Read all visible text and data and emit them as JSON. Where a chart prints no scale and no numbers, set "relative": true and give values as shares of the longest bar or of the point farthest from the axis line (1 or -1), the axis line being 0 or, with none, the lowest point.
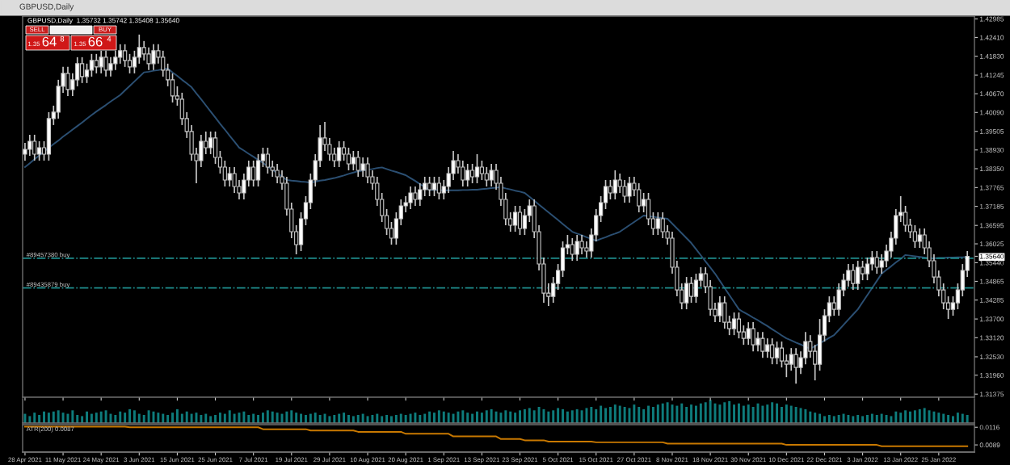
{
  "chart_data": [
    {
      "type": "candlestick",
      "title": "GBPUSD,Daily",
      "subtitle": "GBPUSD,Daily  1.35732 1.35742 1.35408 1.35640",
      "categories": [
        "28 Apr 2021",
        null,
        null,
        null,
        null,
        null,
        null,
        null,
        "11 May 2021",
        null,
        null,
        null,
        null,
        null,
        null,
        null,
        "24 May 2021",
        null,
        null,
        null,
        null,
        null,
        null,
        null,
        "3 Jun 2021",
        null,
        null,
        null,
        null,
        null,
        null,
        null,
        "15 Jun 2021",
        null,
        null,
        null,
        null,
        null,
        null,
        null,
        "25 Jun 2021",
        null,
        null,
        null,
        null,
        null,
        null,
        null,
        "7 Jul 2021",
        null,
        null,
        null,
        null,
        null,
        null,
        null,
        "19 Jul 2021",
        null,
        null,
        null,
        null,
        null,
        null,
        null,
        "29 Jul 2021",
        null,
        null,
        null,
        null,
        null,
        null,
        null,
        "10 Aug 2021",
        null,
        null,
        null,
        null,
        null,
        null,
        null,
        "20 Aug 2021",
        null,
        null,
        null,
        null,
        null,
        null,
        null,
        "1 Sep 2021",
        null,
        null,
        null,
        null,
        null,
        null,
        null,
        "13 Sep 2021",
        null,
        null,
        null,
        null,
        null,
        null,
        null,
        "23 Sep 2021",
        null,
        null,
        null,
        null,
        null,
        null,
        null,
        "5 Oct 2021",
        null,
        null,
        null,
        null,
        null,
        null,
        null,
        "15 Oct 2021",
        null,
        null,
        null,
        null,
        null,
        null,
        null,
        "27 Oct 2021",
        null,
        null,
        null,
        null,
        null,
        null,
        null,
        "8 Nov 2021",
        null,
        null,
        null,
        null,
        null,
        null,
        null,
        "18 Nov 2021",
        null,
        null,
        null,
        null,
        null,
        null,
        null,
        "30 Nov 2021",
        null,
        null,
        null,
        null,
        null,
        null,
        null,
        "10 Dec 2021",
        null,
        null,
        null,
        null,
        null,
        null,
        null,
        "22 Dec 2021",
        null,
        null,
        null,
        null,
        null,
        null,
        null,
        "3 Jan 2022",
        null,
        null,
        null,
        null,
        null,
        null,
        null,
        "13 Jan 2022",
        null,
        null,
        null,
        null,
        null,
        null,
        null,
        "25 Jan 2022",
        null,
        null,
        null,
        null,
        null,
        null
      ],
      "ohlc": [
        [
          1.388,
          1.3915,
          1.386,
          1.3895
        ],
        [
          1.3895,
          1.394,
          1.3875,
          1.392
        ],
        [
          1.392,
          1.394,
          1.386,
          1.388
        ],
        [
          1.388,
          1.392,
          1.386,
          1.39
        ],
        [
          1.39,
          1.392,
          1.386,
          1.388
        ],
        [
          1.388,
          1.401,
          1.386,
          1.399
        ],
        [
          1.399,
          1.403,
          1.397,
          1.401
        ],
        [
          1.401,
          1.411,
          1.399,
          1.409
        ],
        [
          1.409,
          1.415,
          1.407,
          1.413
        ],
        [
          1.413,
          1.415,
          1.406,
          1.408
        ],
        [
          1.408,
          1.413,
          1.406,
          1.411
        ],
        [
          1.411,
          1.418,
          1.409,
          1.416
        ],
        [
          1.416,
          1.418,
          1.41,
          1.412
        ],
        [
          1.412,
          1.416,
          1.41,
          1.414
        ],
        [
          1.414,
          1.419,
          1.412,
          1.417
        ],
        [
          1.417,
          1.419,
          1.413,
          1.415
        ],
        [
          1.415,
          1.42,
          1.413,
          1.418
        ],
        [
          1.418,
          1.42,
          1.412,
          1.414
        ],
        [
          1.414,
          1.418,
          1.412,
          1.416
        ],
        [
          1.416,
          1.42,
          1.414,
          1.418
        ],
        [
          1.418,
          1.422,
          1.416,
          1.42
        ],
        [
          1.42,
          1.422,
          1.415,
          1.417
        ],
        [
          1.417,
          1.419,
          1.413,
          1.415
        ],
        [
          1.415,
          1.42,
          1.413,
          1.418
        ],
        [
          1.418,
          1.425,
          1.416,
          1.421
        ],
        [
          1.421,
          1.423,
          1.417,
          1.419
        ],
        [
          1.419,
          1.421,
          1.414,
          1.416
        ],
        [
          1.416,
          1.422,
          1.414,
          1.42
        ],
        [
          1.42,
          1.422,
          1.416,
          1.418
        ],
        [
          1.418,
          1.42,
          1.412,
          1.414
        ],
        [
          1.414,
          1.416,
          1.409,
          1.411
        ],
        [
          1.411,
          1.413,
          1.404,
          1.406
        ],
        [
          1.406,
          1.409,
          1.403,
          1.405
        ],
        [
          1.405,
          1.407,
          1.397,
          1.399
        ],
        [
          1.399,
          1.401,
          1.393,
          1.395
        ],
        [
          1.395,
          1.397,
          1.386,
          1.388
        ],
        [
          1.388,
          1.39,
          1.379,
          1.386
        ],
        [
          1.386,
          1.394,
          1.384,
          1.392
        ],
        [
          1.392,
          1.395,
          1.388,
          1.39
        ],
        [
          1.39,
          1.395,
          1.388,
          1.393
        ],
        [
          1.393,
          1.395,
          1.385,
          1.387
        ],
        [
          1.387,
          1.389,
          1.382,
          1.384
        ],
        [
          1.384,
          1.386,
          1.378,
          1.38
        ],
        [
          1.38,
          1.384,
          1.378,
          1.382
        ],
        [
          1.382,
          1.384,
          1.376,
          1.378
        ],
        [
          1.378,
          1.38,
          1.374,
          1.376
        ],
        [
          1.376,
          1.382,
          1.374,
          1.38
        ],
        [
          1.38,
          1.386,
          1.378,
          1.384
        ],
        [
          1.384,
          1.386,
          1.378,
          1.38
        ],
        [
          1.38,
          1.388,
          1.378,
          1.386
        ],
        [
          1.386,
          1.39,
          1.384,
          1.388
        ],
        [
          1.388,
          1.39,
          1.382,
          1.384
        ],
        [
          1.384,
          1.386,
          1.381,
          1.383
        ],
        [
          1.383,
          1.385,
          1.379,
          1.381
        ],
        [
          1.381,
          1.383,
          1.377,
          1.379
        ],
        [
          1.379,
          1.381,
          1.369,
          1.371
        ],
        [
          1.371,
          1.373,
          1.362,
          1.364
        ],
        [
          1.364,
          1.366,
          1.357,
          1.36
        ],
        [
          1.36,
          1.37,
          1.358,
          1.368
        ],
        [
          1.368,
          1.375,
          1.366,
          1.373
        ],
        [
          1.373,
          1.382,
          1.371,
          1.38
        ],
        [
          1.38,
          1.388,
          1.378,
          1.386
        ],
        [
          1.386,
          1.397,
          1.384,
          1.393
        ],
        [
          1.393,
          1.398,
          1.389,
          1.391
        ],
        [
          1.391,
          1.393,
          1.386,
          1.388
        ],
        [
          1.388,
          1.39,
          1.384,
          1.386
        ],
        [
          1.386,
          1.392,
          1.384,
          1.39
        ],
        [
          1.39,
          1.392,
          1.386,
          1.388
        ],
        [
          1.388,
          1.39,
          1.383,
          1.385
        ],
        [
          1.385,
          1.389,
          1.383,
          1.387
        ],
        [
          1.387,
          1.389,
          1.381,
          1.383
        ],
        [
          1.383,
          1.387,
          1.381,
          1.385
        ],
        [
          1.385,
          1.387,
          1.379,
          1.381
        ],
        [
          1.381,
          1.383,
          1.377,
          1.379
        ],
        [
          1.379,
          1.381,
          1.372,
          1.374
        ],
        [
          1.374,
          1.376,
          1.367,
          1.369
        ],
        [
          1.369,
          1.371,
          1.363,
          1.365
        ],
        [
          1.365,
          1.367,
          1.36,
          1.362
        ],
        [
          1.362,
          1.37,
          1.36,
          1.368
        ],
        [
          1.368,
          1.374,
          1.366,
          1.372
        ],
        [
          1.372,
          1.375,
          1.37,
          1.373
        ],
        [
          1.373,
          1.378,
          1.371,
          1.376
        ],
        [
          1.376,
          1.378,
          1.372,
          1.374
        ],
        [
          1.374,
          1.379,
          1.372,
          1.377
        ],
        [
          1.377,
          1.381,
          1.375,
          1.379
        ],
        [
          1.379,
          1.381,
          1.375,
          1.377
        ],
        [
          1.377,
          1.381,
          1.375,
          1.379
        ],
        [
          1.379,
          1.381,
          1.374,
          1.376
        ],
        [
          1.376,
          1.38,
          1.374,
          1.378
        ],
        [
          1.378,
          1.384,
          1.376,
          1.382
        ],
        [
          1.382,
          1.389,
          1.38,
          1.386
        ],
        [
          1.386,
          1.388,
          1.382,
          1.384
        ],
        [
          1.384,
          1.386,
          1.378,
          1.38
        ],
        [
          1.38,
          1.385,
          1.378,
          1.383
        ],
        [
          1.383,
          1.385,
          1.379,
          1.381
        ],
        [
          1.381,
          1.388,
          1.379,
          1.384
        ],
        [
          1.384,
          1.386,
          1.38,
          1.382
        ],
        [
          1.382,
          1.384,
          1.378,
          1.38
        ],
        [
          1.38,
          1.385,
          1.378,
          1.383
        ],
        [
          1.383,
          1.385,
          1.377,
          1.379
        ],
        [
          1.379,
          1.381,
          1.372,
          1.374
        ],
        [
          1.374,
          1.376,
          1.366,
          1.368
        ],
        [
          1.368,
          1.37,
          1.364,
          1.366
        ],
        [
          1.366,
          1.372,
          1.364,
          1.37
        ],
        [
          1.37,
          1.372,
          1.363,
          1.365
        ],
        [
          1.365,
          1.371,
          1.363,
          1.369
        ],
        [
          1.369,
          1.374,
          1.367,
          1.372
        ],
        [
          1.372,
          1.374,
          1.362,
          1.364
        ],
        [
          1.364,
          1.366,
          1.352,
          1.354
        ],
        [
          1.354,
          1.356,
          1.342,
          1.345
        ],
        [
          1.345,
          1.348,
          1.341,
          1.344
        ],
        [
          1.344,
          1.35,
          1.342,
          1.348
        ],
        [
          1.348,
          1.354,
          1.346,
          1.352
        ],
        [
          1.352,
          1.361,
          1.35,
          1.359
        ],
        [
          1.359,
          1.363,
          1.357,
          1.36
        ],
        [
          1.36,
          1.362,
          1.355,
          1.357
        ],
        [
          1.357,
          1.363,
          1.355,
          1.361
        ],
        [
          1.361,
          1.363,
          1.357,
          1.359
        ],
        [
          1.359,
          1.361,
          1.356,
          1.358
        ],
        [
          1.358,
          1.365,
          1.356,
          1.363
        ],
        [
          1.363,
          1.371,
          1.361,
          1.369
        ],
        [
          1.369,
          1.375,
          1.367,
          1.373
        ],
        [
          1.373,
          1.38,
          1.371,
          1.378
        ],
        [
          1.378,
          1.38,
          1.374,
          1.376
        ],
        [
          1.376,
          1.383,
          1.374,
          1.38
        ],
        [
          1.38,
          1.382,
          1.376,
          1.378
        ],
        [
          1.378,
          1.38,
          1.373,
          1.375
        ],
        [
          1.375,
          1.381,
          1.373,
          1.379
        ],
        [
          1.379,
          1.381,
          1.375,
          1.377
        ],
        [
          1.377,
          1.379,
          1.37,
          1.372
        ],
        [
          1.372,
          1.376,
          1.37,
          1.374
        ],
        [
          1.374,
          1.376,
          1.366,
          1.368
        ],
        [
          1.368,
          1.37,
          1.363,
          1.365
        ],
        [
          1.365,
          1.37,
          1.363,
          1.368
        ],
        [
          1.368,
          1.37,
          1.362,
          1.364
        ],
        [
          1.364,
          1.366,
          1.36,
          1.362
        ],
        [
          1.362,
          1.364,
          1.351,
          1.353
        ],
        [
          1.353,
          1.355,
          1.344,
          1.346
        ],
        [
          1.346,
          1.348,
          1.34,
          1.342
        ],
        [
          1.342,
          1.35,
          1.34,
          1.348
        ],
        [
          1.348,
          1.35,
          1.342,
          1.344
        ],
        [
          1.344,
          1.351,
          1.342,
          1.349
        ],
        [
          1.349,
          1.353,
          1.347,
          1.351
        ],
        [
          1.351,
          1.353,
          1.345,
          1.347
        ],
        [
          1.347,
          1.349,
          1.338,
          1.34
        ],
        [
          1.34,
          1.342,
          1.336,
          1.338
        ],
        [
          1.338,
          1.344,
          1.336,
          1.342
        ],
        [
          1.342,
          1.344,
          1.334,
          1.336
        ],
        [
          1.336,
          1.338,
          1.332,
          1.334
        ],
        [
          1.334,
          1.339,
          1.332,
          1.337
        ],
        [
          1.337,
          1.339,
          1.331,
          1.333
        ],
        [
          1.333,
          1.335,
          1.329,
          1.331
        ],
        [
          1.331,
          1.336,
          1.329,
          1.334
        ],
        [
          1.334,
          1.336,
          1.327,
          1.329
        ],
        [
          1.329,
          1.333,
          1.327,
          1.331
        ],
        [
          1.331,
          1.333,
          1.325,
          1.327
        ],
        [
          1.327,
          1.331,
          1.325,
          1.329
        ],
        [
          1.329,
          1.331,
          1.323,
          1.325
        ],
        [
          1.325,
          1.33,
          1.323,
          1.328
        ],
        [
          1.328,
          1.33,
          1.322,
          1.324
        ],
        [
          1.324,
          1.326,
          1.319,
          1.323
        ],
        [
          1.323,
          1.328,
          1.321,
          1.326
        ],
        [
          1.326,
          1.328,
          1.317,
          1.322
        ],
        [
          1.322,
          1.327,
          1.32,
          1.325
        ],
        [
          1.325,
          1.333,
          1.323,
          1.33
        ],
        [
          1.33,
          1.332,
          1.325,
          1.327
        ],
        [
          1.327,
          1.329,
          1.318,
          1.323
        ],
        [
          1.323,
          1.337,
          1.321,
          1.332
        ],
        [
          1.332,
          1.34,
          1.33,
          1.338
        ],
        [
          1.338,
          1.344,
          1.336,
          1.342
        ],
        [
          1.342,
          1.344,
          1.338,
          1.34
        ],
        [
          1.34,
          1.348,
          1.338,
          1.346
        ],
        [
          1.346,
          1.351,
          1.344,
          1.349
        ],
        [
          1.349,
          1.354,
          1.347,
          1.352
        ],
        [
          1.352,
          1.354,
          1.346,
          1.348
        ],
        [
          1.348,
          1.355,
          1.346,
          1.353
        ],
        [
          1.353,
          1.355,
          1.349,
          1.351
        ],
        [
          1.351,
          1.356,
          1.349,
          1.354
        ],
        [
          1.354,
          1.358,
          1.352,
          1.356
        ],
        [
          1.356,
          1.358,
          1.351,
          1.353
        ],
        [
          1.353,
          1.357,
          1.351,
          1.355
        ],
        [
          1.355,
          1.36,
          1.353,
          1.358
        ],
        [
          1.358,
          1.364,
          1.356,
          1.362
        ],
        [
          1.362,
          1.371,
          1.36,
          1.369
        ],
        [
          1.369,
          1.375,
          1.367,
          1.37
        ],
        [
          1.37,
          1.372,
          1.364,
          1.366
        ],
        [
          1.366,
          1.368,
          1.362,
          1.364
        ],
        [
          1.364,
          1.366,
          1.359,
          1.361
        ],
        [
          1.361,
          1.365,
          1.359,
          1.363
        ],
        [
          1.363,
          1.365,
          1.357,
          1.359
        ],
        [
          1.359,
          1.361,
          1.353,
          1.355
        ],
        [
          1.355,
          1.357,
          1.348,
          1.35
        ],
        [
          1.35,
          1.352,
          1.344,
          1.346
        ],
        [
          1.346,
          1.348,
          1.34,
          1.342
        ],
        [
          1.342,
          1.344,
          1.337,
          1.34
        ],
        [
          1.34,
          1.344,
          1.338,
          1.342
        ],
        [
          1.342,
          1.348,
          1.34,
          1.346
        ],
        [
          1.346,
          1.354,
          1.344,
          1.352
        ],
        [
          1.352,
          1.358,
          1.35,
          1.3564
        ]
      ],
      "series": [
        {
          "type": "line",
          "color": "#2b4f72",
          "values": [
            1.384,
            1.3852,
            1.3864,
            1.3876,
            1.3888,
            1.39,
            1.3911,
            1.3922,
            1.3934,
            1.3945,
            1.3956,
            1.3967,
            1.3978,
            1.399,
            1.4001,
            1.4012,
            1.4022,
            1.4032,
            1.4043,
            1.4053,
            1.4063,
            1.4077,
            1.4091,
            1.4105,
            1.4119,
            1.4133,
            1.4135,
            1.4138,
            1.414,
            1.4143,
            1.4145,
            1.4133,
            1.4122,
            1.411,
            1.4099,
            1.4087,
            1.4068,
            1.405,
            1.4031,
            1.4012,
            1.3993,
            1.3974,
            1.3956,
            1.3937,
            1.3919,
            1.39,
            1.3891,
            1.3881,
            1.3872,
            1.3862,
            1.3853,
            1.3842,
            1.3832,
            1.3821,
            1.3811,
            1.38,
            1.3798,
            1.3797,
            1.3795,
            1.3794,
            1.3792,
            1.3795,
            1.3798,
            1.38,
            1.3803,
            1.3806,
            1.381,
            1.3814,
            1.3819,
            1.3823,
            1.3827,
            1.3829,
            1.3832,
            1.3834,
            1.3837,
            1.3839,
            1.3834,
            1.3829,
            1.3825,
            1.382,
            1.3815,
            1.3806,
            1.3797,
            1.3787,
            1.3778,
            1.3769,
            1.3769,
            1.3769,
            1.3768,
            1.3768,
            1.3768,
            1.3768,
            1.3769,
            1.3769,
            1.377,
            1.377,
            1.3772,
            1.3773,
            1.3775,
            1.3776,
            1.3778,
            1.3774,
            1.3771,
            1.3767,
            1.3764,
            1.376,
            1.3748,
            1.3736,
            1.3724,
            1.3712,
            1.37,
            1.3688,
            1.3676,
            1.3664,
            1.3652,
            1.364,
            1.3634,
            1.3629,
            1.3623,
            1.3618,
            1.3612,
            1.3618,
            1.3623,
            1.3629,
            1.3634,
            1.364,
            1.365,
            1.366,
            1.367,
            1.368,
            1.369,
            1.3688,
            1.3686,
            1.3684,
            1.3682,
            1.368,
            1.3665,
            1.365,
            1.3635,
            1.362,
            1.3605,
            1.3586,
            1.3567,
            1.3548,
            1.3529,
            1.351,
            1.3488,
            1.3466,
            1.3444,
            1.3422,
            1.34,
            1.3391,
            1.3383,
            1.3374,
            1.3366,
            1.3357,
            1.3348,
            1.3338,
            1.3329,
            1.3319,
            1.331,
            1.3304,
            1.3297,
            1.3291,
            1.3284,
            1.3278,
            1.3286,
            1.3295,
            1.3303,
            1.3312,
            1.332,
            1.3336,
            1.3352,
            1.3368,
            1.3384,
            1.34,
            1.3422,
            1.3444,
            1.3466,
            1.3488,
            1.351,
            1.3522,
            1.3533,
            1.3545,
            1.3556,
            1.3568,
            1.3566,
            1.3564,
            1.3562,
            1.356,
            1.3558,
            1.3558,
            1.3559,
            1.3559,
            1.356,
            1.356,
            1.3561,
            1.3561,
            1.3562
          ]
        }
      ],
      "ylim": [
        1.3128,
        1.4307
      ],
      "yticks": [
        {
          "value": 1.42985,
          "label": "1.42985"
        },
        {
          "value": 1.4241,
          "label": "1.42410"
        },
        {
          "value": 1.4183,
          "label": "1.41830"
        },
        {
          "value": 1.41245,
          "label": "1.41245"
        },
        {
          "value": 1.4067,
          "label": "1.40670"
        },
        {
          "value": 1.4009,
          "label": "1.40090"
        },
        {
          "value": 1.39505,
          "label": "1.39505"
        },
        {
          "value": 1.3893,
          "label": "1.38930"
        },
        {
          "value": 1.3835,
          "label": "1.38350"
        },
        {
          "value": 1.37765,
          "label": "1.37765"
        },
        {
          "value": 1.37185,
          "label": "1.37185"
        },
        {
          "value": 1.36595,
          "label": "1.36595"
        },
        {
          "value": 1.36025,
          "label": "1.36025"
        },
        {
          "value": 1.3564,
          "label": "1.35640"
        },
        {
          "value": 1.3544,
          "label": "1.35440"
        },
        {
          "value": 1.34865,
          "label": "1.34865"
        },
        {
          "value": 1.34285,
          "label": "1.34285"
        },
        {
          "value": 1.337,
          "label": "1.33700"
        },
        {
          "value": 1.3312,
          "label": "1.33120"
        },
        {
          "value": 1.3253,
          "label": "1.32530"
        },
        {
          "value": 1.3196,
          "label": "1.31960"
        },
        {
          "value": 1.31375,
          "label": "1.31375"
        }
      ],
      "ref_lines": [
        {
          "axis": "y",
          "value": 1.3558,
          "label": "#89457380 buy",
          "color": "#1e8c8c",
          "line_style": "dashed"
        },
        {
          "axis": "y",
          "value": 1.3466,
          "label": "#89435879 buy",
          "color": "#1e8c8c",
          "line_style": "dashed"
        }
      ],
      "annotations": [
        "SELL",
        "BUY",
        "1.35",
        "64",
        "8",
        "1.35",
        "66",
        "4"
      ],
      "tick_labels": true
    },
    {
      "type": "bar",
      "relative": true,
      "color": "#0e7c7c",
      "tick_labels": false,
      "categories": [
        null,
        null,
        null,
        null,
        null,
        null,
        null,
        null,
        null,
        null,
        null,
        null,
        null,
        null,
        null,
        null,
        null,
        null,
        null,
        null,
        null,
        null,
        null,
        null,
        null,
        null,
        null,
        null,
        null,
        null,
        null,
        null,
        null,
        null,
        null,
        null,
        null,
        null,
        null,
        null,
        null,
        null,
        null,
        null,
        null,
        null,
        null,
        null,
        null,
        null,
        null,
        null,
        null,
        null,
        null,
        null,
        null,
        null,
        null,
        null,
        null,
        null,
        null,
        null,
        null,
        null,
        null,
        null,
        null,
        null,
        null,
        null,
        null,
        null,
        null,
        null,
        null,
        null,
        null,
        null,
        null,
        null,
        null,
        null,
        null,
        null,
        null,
        null,
        null,
        null,
        null,
        null,
        null,
        null,
        null,
        null,
        null,
        null,
        null,
        null,
        null,
        null,
        null,
        null,
        null,
        null,
        null,
        null,
        null,
        null,
        null,
        null,
        null,
        null,
        null,
        null,
        null,
        null,
        null,
        null,
        null,
        null,
        null,
        null,
        null,
        null,
        null,
        null,
        null,
        null,
        null,
        null,
        null,
        null,
        null,
        null,
        null,
        null,
        null,
        null,
        null,
        null,
        null,
        null,
        null,
        null,
        null,
        null,
        null,
        null,
        null,
        null,
        null,
        null,
        null,
        null,
        null,
        null,
        null,
        null,
        null,
        null,
        null,
        null,
        null,
        null,
        null,
        null,
        null,
        null,
        null,
        null,
        null,
        null,
        null,
        null,
        null,
        null,
        null,
        null,
        null,
        null,
        null,
        null,
        null,
        null,
        null,
        null,
        null,
        null,
        null,
        null,
        null,
        null,
        null,
        null,
        null,
        null,
        null
      ],
      "values": [
        0.4,
        0.3,
        0.45,
        0.35,
        0.5,
        0.45,
        0.5,
        0.55,
        0.45,
        0.4,
        0.55,
        0.35,
        0.3,
        0.5,
        0.4,
        0.45,
        0.5,
        0.55,
        0.4,
        0.35,
        0.5,
        0.45,
        0.6,
        0.55,
        0.4,
        0.35,
        0.55,
        0.5,
        0.45,
        0.4,
        0.35,
        0.45,
        0.6,
        0.4,
        0.5,
        0.4,
        0.45,
        0.35,
        0.4,
        0.3,
        0.35,
        0.45,
        0.4,
        0.55,
        0.4,
        0.45,
        0.5,
        0.35,
        0.4,
        0.35,
        0.45,
        0.55,
        0.5,
        0.45,
        0.4,
        0.5,
        0.55,
        0.45,
        0.4,
        0.35,
        0.4,
        0.45,
        0.35,
        0.4,
        0.3,
        0.35,
        0.4,
        0.45,
        0.35,
        0.3,
        0.35,
        0.4,
        0.3,
        0.35,
        0.4,
        0.3,
        0.35,
        0.3,
        0.35,
        0.4,
        0.35,
        0.4,
        0.45,
        0.35,
        0.4,
        0.5,
        0.45,
        0.55,
        0.5,
        0.45,
        0.4,
        0.5,
        0.55,
        0.45,
        0.4,
        0.5,
        0.45,
        0.55,
        0.6,
        0.5,
        0.45,
        0.55,
        0.5,
        0.45,
        0.55,
        0.6,
        0.65,
        0.55,
        0.7,
        0.6,
        0.5,
        0.55,
        0.65,
        0.6,
        0.5,
        0.55,
        0.6,
        0.55,
        0.65,
        0.7,
        0.6,
        0.75,
        0.65,
        0.7,
        0.8,
        0.75,
        0.7,
        0.65,
        0.8,
        0.7,
        0.6,
        0.75,
        0.7,
        0.8,
        0.85,
        0.9,
        0.8,
        0.75,
        0.85,
        0.7,
        0.8,
        0.75,
        0.85,
        0.9,
        1.0,
        0.85,
        0.8,
        0.9,
        0.95,
        0.8,
        0.85,
        0.75,
        0.8,
        0.7,
        0.85,
        0.75,
        0.8,
        0.9,
        0.85,
        0.7,
        0.8,
        0.75,
        0.7,
        0.65,
        0.6,
        0.5,
        0.45,
        0.4,
        0.3,
        0.35,
        0.3,
        0.35,
        0.4,
        0.35,
        0.3,
        0.35,
        0.3,
        0.35,
        0.4,
        0.35,
        0.4,
        0.35,
        0.3,
        0.5,
        0.45,
        0.55,
        0.5,
        0.55,
        0.6,
        0.65,
        0.55,
        0.5,
        0.45,
        0.4,
        0.35,
        0.3,
        0.45,
        0.4,
        0.35
      ]
    },
    {
      "type": "line",
      "color": "#c87800",
      "ylim": [
        0.0078,
        0.012
      ],
      "yticks": [
        0.0116,
        0.0089
      ],
      "annotations": [
        "ATR(200) 0.0087"
      ],
      "tick_labels": "y",
      "categories": [
        null,
        null,
        null,
        null,
        null,
        null,
        null,
        null,
        null,
        null,
        null,
        null,
        null,
        null,
        null,
        null,
        null,
        null,
        null,
        null,
        null,
        null,
        null,
        null,
        null,
        null,
        null,
        null,
        null,
        null,
        null,
        null,
        null,
        null,
        null,
        null,
        null,
        null,
        null,
        null,
        null,
        null,
        null,
        null,
        null,
        null,
        null,
        null,
        null,
        null,
        null,
        null,
        null,
        null,
        null,
        null,
        null,
        null,
        null,
        null,
        null,
        null,
        null,
        null,
        null,
        null,
        null,
        null,
        null,
        null,
        null,
        null,
        null,
        null,
        null,
        null,
        null,
        null,
        null,
        null,
        null,
        null,
        null,
        null,
        null,
        null,
        null,
        null,
        null,
        null,
        null,
        null,
        null,
        null,
        null,
        null,
        null,
        null,
        null,
        null,
        null,
        null,
        null,
        null,
        null,
        null,
        null,
        null,
        null,
        null,
        null,
        null,
        null,
        null,
        null,
        null,
        null,
        null,
        null,
        null,
        null,
        null,
        null,
        null,
        null,
        null,
        null,
        null,
        null,
        null,
        null,
        null,
        null,
        null,
        null,
        null,
        null,
        null,
        null,
        null,
        null,
        null,
        null,
        null,
        null,
        null,
        null,
        null,
        null,
        null,
        null,
        null,
        null,
        null,
        null,
        null,
        null,
        null,
        null,
        null,
        null,
        null,
        null,
        null,
        null,
        null,
        null,
        null,
        null,
        null,
        null,
        null,
        null,
        null,
        null,
        null,
        null,
        null,
        null,
        null,
        null,
        null,
        null,
        null,
        null,
        null,
        null,
        null,
        null,
        null,
        null,
        null,
        null,
        null,
        null,
        null,
        null,
        null,
        null
      ],
      "values": [
        0.0117,
        0.0117,
        0.0117,
        0.0117,
        0.0117,
        0.0117,
        0.0117,
        0.0117,
        0.0117,
        0.0117,
        0.0117,
        0.0117,
        0.0117,
        0.0117,
        0.0117,
        0.0117,
        0.0117,
        0.0117,
        0.0117,
        0.0117,
        0.0117,
        0.0117,
        0.0116,
        0.0116,
        0.0116,
        0.0116,
        0.0116,
        0.0116,
        0.0116,
        0.0116,
        0.0116,
        0.0116,
        0.0116,
        0.0116,
        0.0116,
        0.0116,
        0.0116,
        0.0116,
        0.0116,
        0.0116,
        0.0116,
        0.0116,
        0.0116,
        0.0116,
        0.0116,
        0.0116,
        0.0116,
        0.0116,
        0.0116,
        0.0116,
        0.0113,
        0.0113,
        0.0113,
        0.0113,
        0.0113,
        0.0113,
        0.0113,
        0.0113,
        0.0113,
        0.0113,
        0.0111,
        0.0111,
        0.0111,
        0.0111,
        0.0111,
        0.0111,
        0.0111,
        0.0111,
        0.0111,
        0.0111,
        0.0109,
        0.0109,
        0.0109,
        0.0109,
        0.0109,
        0.0109,
        0.0109,
        0.0109,
        0.0109,
        0.0109,
        0.0106,
        0.0106,
        0.0106,
        0.0106,
        0.0106,
        0.0106,
        0.0106,
        0.0106,
        0.0106,
        0.0106,
        0.0102,
        0.0102,
        0.0102,
        0.0102,
        0.0102,
        0.0102,
        0.0102,
        0.0102,
        0.0102,
        0.0102,
        0.0098,
        0.0098,
        0.0098,
        0.0098,
        0.0098,
        0.0096,
        0.0096,
        0.0096,
        0.0096,
        0.0096,
        0.0094,
        0.0094,
        0.0094,
        0.0094,
        0.0094,
        0.0094,
        0.0094,
        0.0094,
        0.0094,
        0.0094,
        0.0093,
        0.0093,
        0.0093,
        0.0093,
        0.0093,
        0.0093,
        0.0093,
        0.0093,
        0.0093,
        0.0093,
        0.0093,
        0.0093,
        0.0093,
        0.0093,
        0.0093,
        0.0091,
        0.0091,
        0.0091,
        0.0091,
        0.0091,
        0.0091,
        0.0091,
        0.0091,
        0.0091,
        0.0091,
        0.0091,
        0.0091,
        0.0091,
        0.0091,
        0.0091,
        0.0091,
        0.0091,
        0.0091,
        0.0091,
        0.0091,
        0.0091,
        0.0091,
        0.0091,
        0.0091,
        0.0091,
        0.0089,
        0.0089,
        0.0089,
        0.0089,
        0.0089,
        0.0089,
        0.0089,
        0.0089,
        0.0089,
        0.0089,
        0.0089,
        0.0089,
        0.0089,
        0.0089,
        0.0089,
        0.0089,
        0.0089,
        0.0089,
        0.0089,
        0.0089,
        0.0087,
        0.0087,
        0.0087,
        0.0087,
        0.0087,
        0.0087,
        0.0087,
        0.0087,
        0.0087,
        0.0087,
        0.0087,
        0.0087,
        0.0087,
        0.0087,
        0.0087,
        0.0087,
        0.0087,
        0.0087,
        0.0087
      ]
    }
  ]
}
